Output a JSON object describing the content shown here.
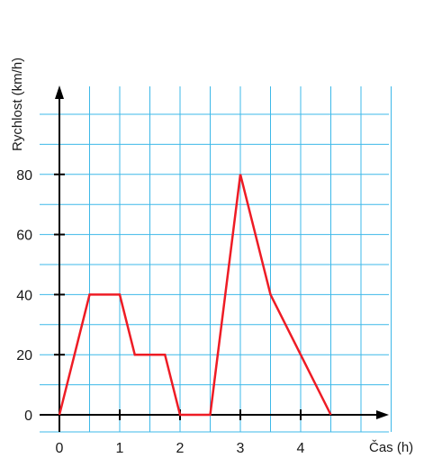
{
  "chart_data": {
    "type": "line",
    "xlabel": "Čas (h)",
    "ylabel": "Rychlost (km/h)",
    "x_ticks": [
      0,
      1,
      2,
      3,
      4
    ],
    "y_ticks": [
      0,
      20,
      40,
      60,
      80
    ],
    "xlim": [
      0,
      5.5
    ],
    "ylim": [
      0,
      100
    ],
    "grid": true,
    "x_grid_step": 0.5,
    "y_grid_step": 10,
    "colors": {
      "grid": "#3db8e8",
      "line": "#ee1c25",
      "axis": "#000000"
    },
    "series": [
      {
        "x": [
          0,
          0.5,
          1,
          1.25,
          1.75,
          2,
          2.5,
          3,
          3.5,
          4.5
        ],
        "y": [
          0,
          40,
          40,
          20,
          20,
          0,
          0,
          80,
          40,
          0
        ]
      }
    ]
  }
}
